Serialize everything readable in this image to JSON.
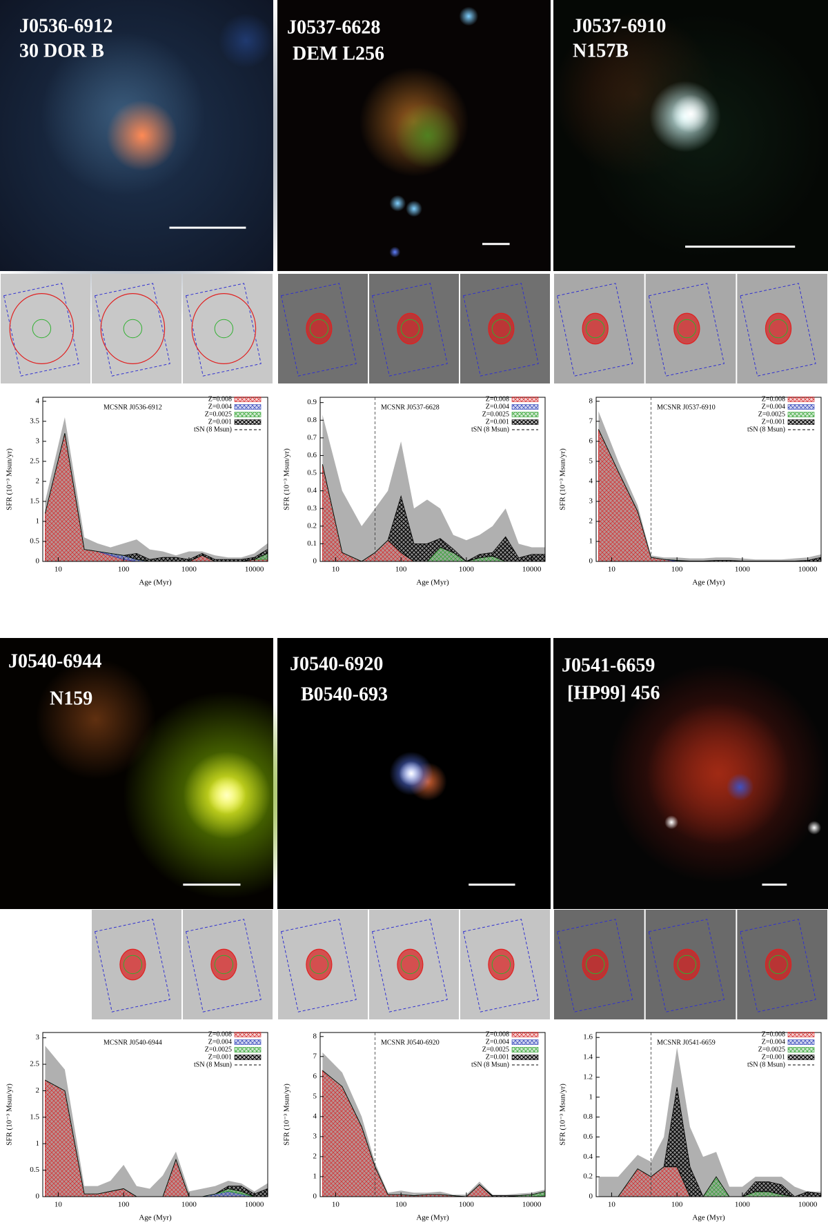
{
  "images": [
    {
      "name": "J0536-6912",
      "alias": "30 DOR B"
    },
    {
      "name": "J0537-6628",
      "alias": "DEM L256"
    },
    {
      "name": "J0537-6910",
      "alias": "N157B"
    },
    {
      "name": "J0540-6944",
      "alias": "N159"
    },
    {
      "name": "J0540-6920",
      "alias": "B0540-693"
    },
    {
      "name": "J0541-6659",
      "alias": "[HP99] 456"
    }
  ],
  "chart_data": [
    {
      "type": "area",
      "annotation": "MCSNR J0536-6912",
      "xlabel": "Age (Myr)",
      "ylabel": "SFR (10⁻³ Msun/yr)",
      "xlog": true,
      "x": [
        6.3,
        12.6,
        25,
        40,
        63,
        100,
        158,
        251,
        398,
        631,
        1000,
        1585,
        2512,
        3981,
        6310,
        10000,
        15849
      ],
      "xlim": [
        5.8,
        16000
      ],
      "xticks": [
        10,
        100,
        1000,
        10000
      ],
      "ylim": [
        0,
        4.1
      ],
      "yticks": [
        0,
        0.5,
        1,
        1.5,
        2,
        2.5,
        3,
        3.5,
        4
      ],
      "band_color": "#b0b0b0",
      "upper": [
        1.5,
        3.6,
        0.6,
        0.45,
        0.35,
        0.45,
        0.55,
        0.3,
        0.25,
        0.15,
        0.25,
        0.25,
        0.15,
        0.1,
        0.1,
        0.2,
        0.45
      ],
      "t_sn_label": "tSN (8 Msun)",
      "series": [
        {
          "name": "Z=0.008",
          "color": "#d62728",
          "values": [
            1.2,
            3.2,
            0.3,
            0.25,
            0.15,
            0.05,
            0,
            0,
            0,
            0,
            0,
            0.15,
            0,
            0,
            0,
            0.05,
            0.05
          ]
        },
        {
          "name": "Z=0.004",
          "color": "#2c3fb8",
          "values": [
            0,
            0,
            0,
            0,
            0.05,
            0.1,
            0.05,
            0,
            0,
            0,
            0,
            0,
            0,
            0,
            0,
            0,
            0
          ]
        },
        {
          "name": "Z=0.0025",
          "color": "#2ca02c",
          "values": [
            0,
            0,
            0,
            0,
            0,
            0,
            0,
            0,
            0,
            0,
            0,
            0,
            0,
            0,
            0,
            0,
            0.15
          ]
        },
        {
          "name": "Z=0.001",
          "color": "#000000",
          "values": [
            0,
            0,
            0,
            0,
            0,
            0,
            0.15,
            0.05,
            0.1,
            0.1,
            0.05,
            0.05,
            0.05,
            0.05,
            0.05,
            0.05,
            0.1
          ]
        }
      ]
    },
    {
      "type": "area",
      "annotation": "MCSNR J0537-6628",
      "xlabel": "Age (Myr)",
      "ylabel": "SFR (10⁻³ Msun/yr)",
      "xlog": true,
      "x": [
        6.3,
        12.6,
        25,
        40,
        63,
        100,
        158,
        251,
        398,
        631,
        1000,
        1585,
        2512,
        3981,
        6310,
        10000,
        15849
      ],
      "xlim": [
        5.8,
        16000
      ],
      "xticks": [
        10,
        100,
        1000,
        10000
      ],
      "ylim": [
        0,
        0.93
      ],
      "yticks": [
        0,
        0.1,
        0.2,
        0.3,
        0.4,
        0.5,
        0.6,
        0.7,
        0.8,
        0.9
      ],
      "band_color": "#b0b0b0",
      "upper": [
        0.83,
        0.4,
        0.2,
        0.3,
        0.4,
        0.68,
        0.3,
        0.35,
        0.3,
        0.15,
        0.12,
        0.15,
        0.2,
        0.3,
        0.1,
        0.08,
        0.08
      ],
      "t_sn_label": "tSN (8 Msun)",
      "t_sn": 40,
      "series": [
        {
          "name": "Z=0.008",
          "color": "#d62728",
          "values": [
            0.55,
            0.05,
            0,
            0.05,
            0.12,
            0.05,
            0,
            0,
            0,
            0,
            0,
            0,
            0,
            0,
            0,
            0,
            0
          ]
        },
        {
          "name": "Z=0.004",
          "color": "#2c3fb8",
          "values": [
            0,
            0,
            0,
            0,
            0,
            0,
            0,
            0,
            0,
            0,
            0,
            0,
            0,
            0,
            0,
            0,
            0
          ]
        },
        {
          "name": "Z=0.0025",
          "color": "#2ca02c",
          "values": [
            0,
            0,
            0,
            0,
            0,
            0,
            0,
            0,
            0.08,
            0.05,
            0,
            0.02,
            0.03,
            0,
            0,
            0,
            0
          ]
        },
        {
          "name": "Z=0.001",
          "color": "#000000",
          "values": [
            0,
            0,
            0,
            0,
            0,
            0.32,
            0.1,
            0.1,
            0.05,
            0.02,
            0,
            0.02,
            0.02,
            0.14,
            0.02,
            0.04,
            0.04
          ]
        }
      ]
    },
    {
      "type": "area",
      "annotation": "MCSNR J0537-6910",
      "xlabel": "Age (Myr)",
      "ylabel": "SFR (10⁻³ Msun/yr)",
      "xlog": true,
      "x": [
        6.3,
        12.6,
        25,
        40,
        63,
        100,
        158,
        251,
        398,
        631,
        1000,
        1585,
        2512,
        3981,
        6310,
        10000,
        15849
      ],
      "xlim": [
        5.8,
        16000
      ],
      "xticks": [
        10,
        100,
        1000,
        10000
      ],
      "ylim": [
        0,
        8.2
      ],
      "yticks": [
        0,
        1,
        2,
        3,
        4,
        5,
        6,
        7,
        8
      ],
      "band_color": "#b0b0b0",
      "upper": [
        7.5,
        5,
        2.8,
        0.3,
        0.2,
        0.2,
        0.15,
        0.15,
        0.2,
        0.2,
        0.15,
        0.1,
        0.1,
        0.1,
        0.15,
        0.2,
        0.35
      ],
      "t_sn_label": "tSN (8 Msun)",
      "t_sn": 40,
      "series": [
        {
          "name": "Z=0.008",
          "color": "#d62728",
          "values": [
            6.6,
            4.5,
            2.5,
            0.2,
            0.1,
            0,
            0,
            0,
            0,
            0,
            0,
            0,
            0,
            0,
            0,
            0,
            0
          ]
        },
        {
          "name": "Z=0.004",
          "color": "#2c3fb8",
          "values": [
            0,
            0,
            0,
            0,
            0,
            0.05,
            0,
            0,
            0,
            0,
            0,
            0,
            0,
            0,
            0,
            0,
            0
          ]
        },
        {
          "name": "Z=0.0025",
          "color": "#2ca02c",
          "values": [
            0,
            0,
            0,
            0,
            0,
            0,
            0,
            0,
            0,
            0,
            0,
            0,
            0,
            0,
            0,
            0,
            0
          ]
        },
        {
          "name": "Z=0.001",
          "color": "#000000",
          "values": [
            0,
            0,
            0,
            0,
            0,
            0,
            0.02,
            0.02,
            0.05,
            0.05,
            0.02,
            0.02,
            0.02,
            0.02,
            0.02,
            0.05,
            0.2
          ]
        }
      ]
    },
    {
      "type": "area",
      "annotation": "MCSNR J0540-6944",
      "xlabel": "Age (Myr)",
      "ylabel": "SFR (10⁻³ Msun/yr)",
      "xlog": true,
      "x": [
        6.3,
        12.6,
        25,
        40,
        63,
        100,
        158,
        251,
        398,
        631,
        1000,
        1585,
        2512,
        3981,
        6310,
        10000,
        15849
      ],
      "xlim": [
        5.8,
        16000
      ],
      "xticks": [
        10,
        100,
        1000,
        10000
      ],
      "ylim": [
        0,
        3.1
      ],
      "yticks": [
        0,
        0.5,
        1,
        1.5,
        2,
        2.5,
        3
      ],
      "band_color": "#b0b0b0",
      "upper": [
        2.85,
        2.4,
        0.2,
        0.2,
        0.3,
        0.6,
        0.2,
        0.15,
        0.4,
        0.85,
        0.1,
        0.15,
        0.2,
        0.3,
        0.25,
        0.1,
        0.25
      ],
      "t_sn_label": "tSN (8 Msun)",
      "series": [
        {
          "name": "Z=0.008",
          "color": "#d62728",
          "values": [
            2.2,
            2.0,
            0.05,
            0.05,
            0.1,
            0.15,
            0,
            0,
            0,
            0.7,
            0,
            0,
            0,
            0,
            0,
            0,
            0
          ]
        },
        {
          "name": "Z=0.004",
          "color": "#2c3fb8",
          "values": [
            0,
            0,
            0,
            0,
            0,
            0,
            0,
            0,
            0,
            0,
            0,
            0,
            0.05,
            0.1,
            0.05,
            0,
            0
          ]
        },
        {
          "name": "Z=0.0025",
          "color": "#2ca02c",
          "values": [
            0,
            0,
            0,
            0,
            0,
            0,
            0,
            0,
            0,
            0,
            0,
            0,
            0,
            0.05,
            0.05,
            0,
            0
          ]
        },
        {
          "name": "Z=0.001",
          "color": "#000000",
          "values": [
            0,
            0,
            0,
            0,
            0,
            0,
            0,
            0,
            0,
            0,
            0,
            0,
            0,
            0.05,
            0.1,
            0.05,
            0.15
          ]
        }
      ]
    },
    {
      "type": "area",
      "annotation": "MCSNR J0540-6920",
      "xlabel": "Age (Myr)",
      "ylabel": "SFR (10⁻³ Msun/yr)",
      "xlog": true,
      "x": [
        6.3,
        12.6,
        25,
        40,
        63,
        100,
        158,
        251,
        398,
        631,
        1000,
        1585,
        2512,
        3981,
        6310,
        10000,
        15849
      ],
      "xlim": [
        5.8,
        16000
      ],
      "xticks": [
        10,
        100,
        1000,
        10000
      ],
      "ylim": [
        0,
        8.2
      ],
      "yticks": [
        0,
        1,
        2,
        3,
        4,
        5,
        6,
        7,
        8
      ],
      "band_color": "#b0b0b0",
      "upper": [
        7.2,
        6.2,
        4,
        1.7,
        0.2,
        0.3,
        0.2,
        0.2,
        0.25,
        0.1,
        0.1,
        0.75,
        0.1,
        0.1,
        0.15,
        0.2,
        0.35
      ],
      "t_sn_label": "tSN (8 Msun)",
      "t_sn": 40,
      "series": [
        {
          "name": "Z=0.008",
          "color": "#d62728",
          "values": [
            6.3,
            5.5,
            3.5,
            1.5,
            0.1,
            0.1,
            0.05,
            0.1,
            0.1,
            0.05,
            0,
            0.6,
            0,
            0,
            0,
            0,
            0.05
          ]
        },
        {
          "name": "Z=0.004",
          "color": "#2c3fb8",
          "values": [
            0,
            0,
            0,
            0,
            0,
            0,
            0,
            0,
            0,
            0,
            0,
            0,
            0,
            0,
            0,
            0,
            0
          ]
        },
        {
          "name": "Z=0.0025",
          "color": "#2ca02c",
          "values": [
            0,
            0,
            0,
            0,
            0,
            0,
            0,
            0,
            0,
            0,
            0,
            0,
            0,
            0,
            0.05,
            0.1,
            0.2
          ]
        },
        {
          "name": "Z=0.001",
          "color": "#000000",
          "values": [
            0,
            0,
            0,
            0,
            0,
            0,
            0,
            0,
            0,
            0,
            0,
            0,
            0.05,
            0.05,
            0,
            0,
            0
          ]
        }
      ]
    },
    {
      "type": "area",
      "annotation": "MCSNR J0541-6659",
      "xlabel": "Age (Myr)",
      "ylabel": "SFR (10⁻³ Msun/yr)",
      "xlog": true,
      "x": [
        6.3,
        12.6,
        25,
        40,
        63,
        100,
        158,
        251,
        398,
        631,
        1000,
        1585,
        2512,
        3981,
        6310,
        10000,
        15849
      ],
      "xlim": [
        5.8,
        16000
      ],
      "xticks": [
        10,
        100,
        1000,
        10000
      ],
      "ylim": [
        0,
        1.65
      ],
      "yticks": [
        0,
        0.2,
        0.4,
        0.6,
        0.8,
        1,
        1.2,
        1.4,
        1.6
      ],
      "band_color": "#b0b0b0",
      "upper": [
        0.2,
        0.2,
        0.42,
        0.35,
        0.6,
        1.5,
        0.7,
        0.4,
        0.45,
        0.1,
        0.1,
        0.2,
        0.2,
        0.2,
        0.1,
        0.05,
        0.05
      ],
      "t_sn_label": "tSN (8 Msun)",
      "t_sn": 40,
      "series": [
        {
          "name": "Z=0.008",
          "color": "#d62728",
          "values": [
            0,
            0,
            0.28,
            0.2,
            0.3,
            0.3,
            0,
            0,
            0,
            0,
            0,
            0,
            0,
            0,
            0,
            0,
            0
          ]
        },
        {
          "name": "Z=0.004",
          "color": "#2c3fb8",
          "values": [
            0,
            0,
            0,
            0,
            0,
            0,
            0,
            0,
            0,
            0,
            0,
            0,
            0,
            0,
            0,
            0,
            0
          ]
        },
        {
          "name": "Z=0.0025",
          "color": "#2ca02c",
          "values": [
            0,
            0,
            0,
            0,
            0,
            0,
            0,
            0,
            0.2,
            0,
            0,
            0.05,
            0.05,
            0.02,
            0,
            0,
            0
          ]
        },
        {
          "name": "Z=0.001",
          "color": "#000000",
          "values": [
            0,
            0,
            0,
            0,
            0,
            0.8,
            0.3,
            0,
            0,
            0,
            0,
            0.1,
            0.1,
            0.1,
            0,
            0.05,
            0.03
          ]
        }
      ]
    }
  ]
}
